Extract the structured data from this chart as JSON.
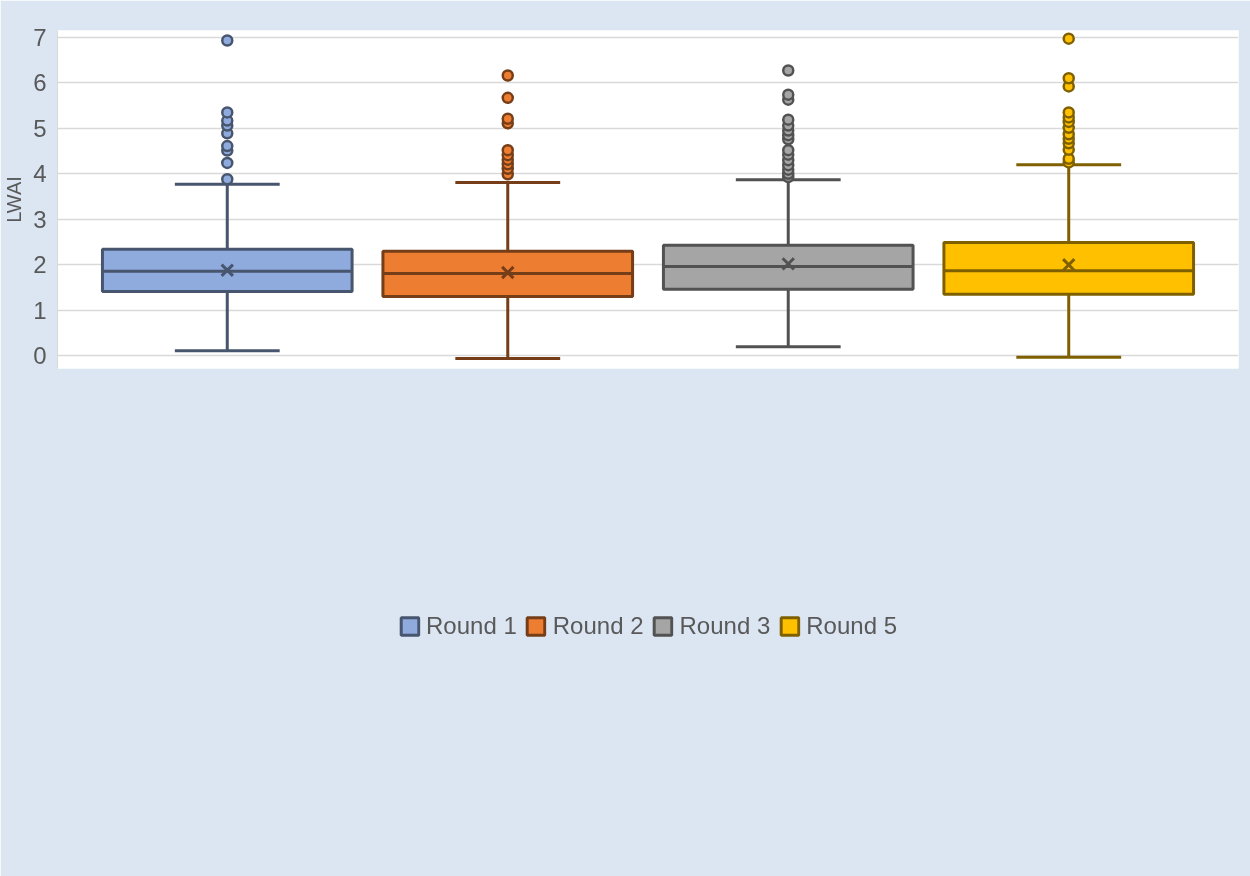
{
  "chart_data": {
    "type": "box",
    "ylabel": "LWAI",
    "categories": [
      null
    ],
    "ylim": [
      -0.28,
      7.15
    ],
    "yticks": [
      0,
      1,
      2,
      3,
      4,
      5,
      6,
      7
    ],
    "grid": "y",
    "legend": "bottom",
    "tick_labels": "y",
    "marker": "circle",
    "series": [
      {
        "name": "Round 1",
        "color": "#8faadc",
        "boxes": [
          {
            "low": 0.11,
            "q1": 1.41,
            "median": 1.86,
            "q3": 2.34,
            "high": 3.77,
            "mean": 1.88,
            "outliers": [
              3.88,
              4.24,
              4.51,
              4.61,
              4.89,
              5.06,
              5.17,
              5.35,
              6.93
            ]
          }
        ]
      },
      {
        "name": "Round 2",
        "color": "#ed7d31",
        "boxes": [
          {
            "low": -0.06,
            "q1": 1.3,
            "median": 1.81,
            "q3": 2.3,
            "high": 3.81,
            "mean": 1.83,
            "outliers": [
              3.99,
              4.11,
              4.21,
              4.31,
              4.41,
              4.52,
              5.11,
              5.21,
              5.67,
              6.16
            ]
          }
        ]
      },
      {
        "name": "Round 3",
        "color": "#a5a5a5",
        "boxes": [
          {
            "low": 0.2,
            "q1": 1.46,
            "median": 1.96,
            "q3": 2.43,
            "high": 3.87,
            "mean": 2.02,
            "outliers": [
              3.93,
              4.0,
              4.09,
              4.19,
              4.3,
              4.42,
              4.52,
              4.76,
              4.85,
              4.95,
              5.06,
              5.19,
              5.63,
              5.74,
              6.27
            ]
          }
        ]
      },
      {
        "name": "Round 5",
        "color": "#ffc000",
        "boxes": [
          {
            "low": -0.03,
            "q1": 1.35,
            "median": 1.87,
            "q3": 2.49,
            "high": 4.2,
            "mean": 2.0,
            "outliers": [
              4.25,
              4.33,
              4.53,
              4.67,
              4.77,
              4.87,
              5.01,
              5.14,
              5.24,
              5.35,
              5.92,
              6.1,
              6.97
            ]
          }
        ]
      }
    ]
  }
}
